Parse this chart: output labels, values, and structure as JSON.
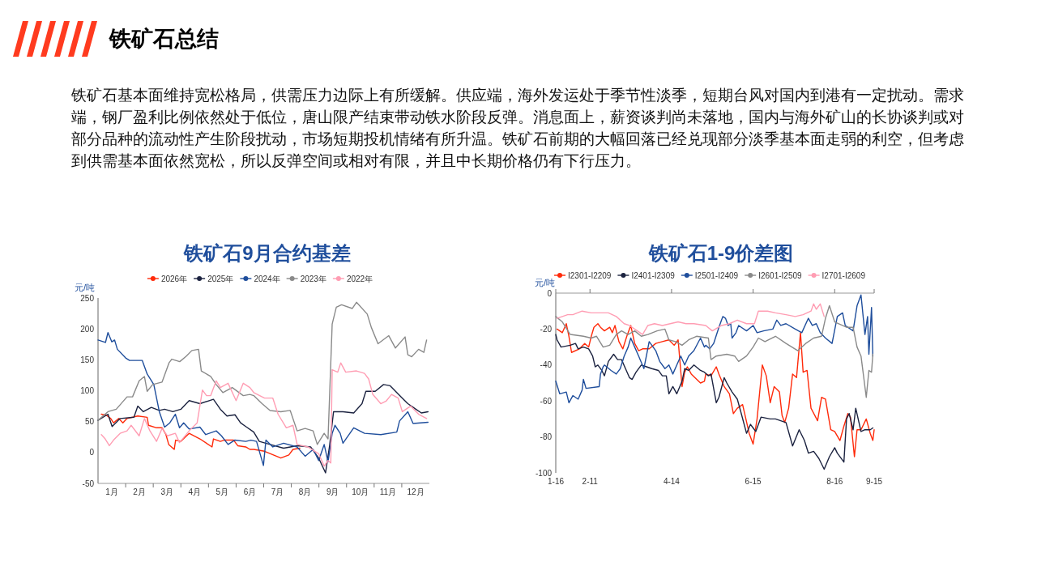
{
  "chart_data": [
    {
      "type": "other",
      "title": "铁矿石总结",
      "annotations": [
        "铁矿石基本面维持宽松格局，供需压力边际上有所缓解。供应端，海外发运处于季节性淡季，短期台风对国内到港有一定扰动。需求端，钢厂盈利比例依然处于低位，唐山限产结束带动铁水阶段反弹。消息面上，薪资谈判尚未落地，国内与海外矿山的长协谈判或对部分品种的流动性产生阶段扰动，市场短期投机情绪有所升温。铁矿石前期的大幅回落已经兑现部分淡季基本面走弱的利空，但考虑到供需基本面依然宽松，所以反弹空间或相对有限，并且中长期价格仍有下行压力。"
      ]
    },
    {
      "type": "line",
      "title": "铁矿石9月合约基差",
      "ylabel": "元/吨",
      "legend": "top",
      "xlim": [
        0,
        12
      ],
      "ylim": [
        -50,
        250
      ],
      "yticks": [
        -50,
        0,
        50,
        100,
        150,
        200,
        250
      ],
      "xticks": [
        {
          "value": 0.5,
          "label": "1月"
        },
        {
          "value": 1,
          "label": null
        },
        {
          "value": 1.5,
          "label": "2月"
        },
        {
          "value": 2,
          "label": null
        },
        {
          "value": 2.5,
          "label": "3月"
        },
        {
          "value": 3,
          "label": null
        },
        {
          "value": 3.5,
          "label": "4月"
        },
        {
          "value": 4,
          "label": null
        },
        {
          "value": 4.5,
          "label": "5月"
        },
        {
          "value": 5,
          "label": null
        },
        {
          "value": 5.5,
          "label": "6月"
        },
        {
          "value": 6,
          "label": null
        },
        {
          "value": 6.5,
          "label": "7月"
        },
        {
          "value": 7,
          "label": null
        },
        {
          "value": 7.5,
          "label": "8月"
        },
        {
          "value": 8,
          "label": null
        },
        {
          "value": 8.5,
          "label": "9月"
        },
        {
          "value": 9,
          "label": null
        },
        {
          "value": 9.5,
          "label": "10月"
        },
        {
          "value": 10,
          "label": null
        },
        {
          "value": 10.5,
          "label": "11月"
        },
        {
          "value": 11,
          "label": null
        },
        {
          "value": 11.5,
          "label": "12月"
        }
      ],
      "series": [
        {
          "name": "2026年",
          "color": "#ff2a0a",
          "x": [
            0.12,
            0.31,
            0.46,
            0.56,
            0.75,
            0.9,
            1.05,
            1.44,
            1.78,
            1.83,
            2.12,
            2.32,
            2.46,
            2.56,
            2.76,
            2.81,
            3.0,
            3.3,
            3.69,
            4.13,
            4.18,
            4.43,
            4.57,
            4.91,
            5.06,
            5.35,
            5.5,
            5.64,
            6.03,
            6.62,
            6.91,
            7.06,
            7.31
          ],
          "values": [
            62,
            60,
            55,
            48,
            55,
            48,
            55,
            59,
            57,
            44,
            40,
            40,
            29,
            13,
            5,
            20,
            18,
            31,
            22,
            9,
            22,
            18,
            20,
            20,
            11,
            9,
            5,
            5,
            2,
            -9,
            -4,
            5,
            7
          ]
        },
        {
          "name": "2025年",
          "color": "#1c2340",
          "x": [
            0,
            0.36,
            0.51,
            0.8,
            1.3,
            1.44,
            1.64,
            1.93,
            2.22,
            2.41,
            2.71,
            3.0,
            3.3,
            3.69,
            4.18,
            4.43,
            4.67,
            4.96,
            5.16,
            5.35,
            5.64,
            5.84,
            6.23,
            6.72,
            7.21,
            7.7,
            7.99,
            8.24,
            8.38,
            8.53,
            8.87,
            9.26,
            9.56,
            9.7,
            10.04,
            10.34,
            10.58,
            11.02,
            11.22,
            11.51,
            11.71,
            11.95
          ],
          "values": [
            52,
            62,
            42,
            55,
            57,
            75,
            66,
            73,
            68,
            70,
            66,
            70,
            84,
            79,
            86,
            70,
            59,
            61,
            48,
            42,
            33,
            18,
            13,
            7,
            11,
            9,
            -9,
            -33,
            9,
            66,
            66,
            64,
            79,
            99,
            99,
            110,
            108,
            88,
            79,
            70,
            64,
            66
          ]
        },
        {
          "name": "2024年",
          "color": "#1f4e9c",
          "x": [
            0,
            0.27,
            0.36,
            0.5,
            0.6,
            0.7,
            1.0,
            1.14,
            1.6,
            1.78,
            2.02,
            2.22,
            2.41,
            2.6,
            2.8,
            2.95,
            3.1,
            3.3,
            3.69,
            3.9,
            4.28,
            4.47,
            4.71,
            4.95,
            5.35,
            5.54,
            5.74,
            5.99,
            6.08,
            6.33,
            6.72,
            7.21,
            7.5,
            7.79,
            7.99,
            8.19,
            8.33,
            8.48,
            8.58,
            8.77,
            8.87,
            9.26,
            9.65,
            10.24,
            10.82,
            10.92,
            11.22,
            11.41,
            11.95
          ],
          "values": [
            182,
            178,
            194,
            179,
            182,
            167,
            153,
            149,
            149,
            127,
            110,
            66,
            41,
            48,
            62,
            40,
            48,
            38,
            41,
            29,
            35,
            27,
            13,
            20,
            18,
            20,
            18,
            -21,
            20,
            9,
            15,
            9,
            -6,
            5,
            -13,
            13,
            -15,
            31,
            44,
            31,
            15,
            40,
            31,
            29,
            33,
            51,
            66,
            47,
            49
          ]
        },
        {
          "name": "2023年",
          "color": "#8a8a8a",
          "x": [
            0,
            0.36,
            0.66,
            1.05,
            1.25,
            1.49,
            1.68,
            1.78,
            1.98,
            2.32,
            2.57,
            2.67,
            2.96,
            3.2,
            3.4,
            3.64,
            3.74,
            4.08,
            4.28,
            4.52,
            4.86,
            5.26,
            5.5,
            5.64,
            5.94,
            6.23,
            6.62,
            6.96,
            7.21,
            7.5,
            7.79,
            7.94,
            8.19,
            8.33,
            8.48,
            8.63,
            8.82,
            9.21,
            9.36,
            9.75,
            9.9,
            10.14,
            10.53,
            10.77,
            11.12,
            11.22,
            11.36,
            11.61,
            11.8,
            11.9
          ],
          "values": [
            52,
            66,
            70,
            90,
            90,
            116,
            123,
            99,
            110,
            114,
            145,
            151,
            147,
            156,
            165,
            167,
            132,
            123,
            110,
            97,
            105,
            92,
            94,
            92,
            79,
            68,
            66,
            68,
            35,
            39,
            35,
            13,
            31,
            22,
            208,
            235,
            239,
            233,
            243,
            224,
            202,
            176,
            189,
            169,
            187,
            158,
            155,
            167,
            162,
            182
          ]
        },
        {
          "name": "2022年",
          "color": "#ff9db3",
          "x": [
            0.12,
            0.26,
            0.41,
            0.56,
            0.8,
            1.05,
            1.2,
            1.49,
            1.68,
            1.88,
            2.12,
            2.32,
            2.51,
            2.8,
            2.95,
            3.3,
            3.59,
            3.78,
            3.93,
            4.08,
            4.28,
            4.43,
            4.71,
            5.0,
            5.26,
            5.5,
            5.64,
            6.03,
            6.33,
            6.52,
            6.82,
            7.06,
            7.21,
            7.6,
            7.99,
            8.19,
            8.33,
            8.43,
            8.48,
            8.68,
            8.79,
            8.97,
            9.36,
            9.65,
            9.8,
            9.95,
            10.24,
            10.43,
            10.63,
            10.87,
            11.02,
            11.32,
            11.61,
            11.9
          ],
          "values": [
            29,
            22,
            11,
            20,
            31,
            35,
            44,
            27,
            55,
            35,
            18,
            39,
            27,
            31,
            16,
            35,
            48,
            101,
            92,
            92,
            116,
            105,
            112,
            84,
            112,
            105,
            97,
            88,
            88,
            62,
            40,
            44,
            13,
            9,
            -2,
            -22,
            -13,
            -17,
            134,
            130,
            145,
            130,
            132,
            128,
            119,
            94,
            79,
            83,
            94,
            88,
            66,
            75,
            62,
            55
          ]
        }
      ]
    },
    {
      "type": "line",
      "title": "铁矿石1-9价差图",
      "ylabel": "元/吨",
      "legend": "top",
      "xlim": [
        "--01-16",
        "--09-15"
      ],
      "ylim": [
        -100,
        0
      ],
      "yticks": [
        0,
        -20,
        -40,
        -60,
        -80,
        -100
      ],
      "xticks": [
        {
          "value": "--01-16",
          "label": "1-16"
        },
        {
          "value": "--02-11",
          "label": "2-11"
        },
        {
          "value": "--04-14",
          "label": "4-14"
        },
        {
          "value": "--06-15",
          "label": "6-15"
        },
        {
          "value": "--08-16",
          "label": "8-16"
        },
        {
          "value": "--09-15",
          "label": "9-15"
        }
      ],
      "series": [
        {
          "name": "I2301-I2209",
          "color": "#ff2a0a",
          "x": [
            "--01-17",
            "--01-21",
            "--01-24",
            "--01-26",
            "--01-28",
            "--02-03",
            "--02-07",
            "--02-10",
            "--02-12",
            "--02-14",
            "--02-17",
            "--02-19",
            "--02-22",
            "--02-26",
            "--02-28",
            "--03-02",
            "--03-05",
            "--03-08",
            "--03-11",
            "--03-14",
            "--03-17",
            "--03-20",
            "--03-23",
            "--03-28",
            "--04-02",
            "--04-07",
            "--04-12",
            "--04-16",
            "--04-19",
            "--04-22",
            "--04-24",
            "--04-26",
            "--04-29",
            "--05-06",
            "--05-09",
            "--05-10",
            "--05-14",
            "--05-18",
            "--05-20",
            "--05-24",
            "--05-28",
            "--05-31",
            "--06-03",
            "--06-07",
            "--06-12",
            "--06-15",
            "--06-18",
            "--06-22",
            "--06-25",
            "--06-28",
            "--07-01",
            "--07-05",
            "--07-07",
            "--07-09",
            "--07-12",
            "--07-15",
            "--07-18",
            "--07-21",
            "--07-23",
            "--07-26",
            "--07-29",
            "--08-03",
            "--08-06",
            "--08-09",
            "--08-13",
            "--08-16",
            "--08-20",
            "--08-23",
            "--08-26",
            "--08-28",
            "--08-31",
            "--09-02",
            "--09-05",
            "--09-09",
            "--09-12",
            "--09-14",
            "--09-15"
          ],
          "values": [
            -20,
            -22,
            -17,
            -24,
            -33,
            -31,
            -28,
            -30,
            -24,
            -19,
            -17,
            -19,
            -21,
            -19,
            -22,
            -18,
            -27,
            -31,
            -24,
            -18,
            -28,
            -32,
            -31,
            -31,
            -28,
            -27,
            -26,
            -29,
            -26,
            -52,
            -44,
            -41,
            -45,
            -50,
            -49,
            -45,
            -46,
            -41,
            -45,
            -52,
            -56,
            -67,
            -64,
            -62,
            -78,
            -84,
            -70,
            -40,
            -46,
            -61,
            -52,
            -55,
            -68,
            -72,
            -64,
            -45,
            -47,
            -22,
            -44,
            -43,
            -64,
            -71,
            -58,
            -59,
            -76,
            -77,
            -82,
            -74,
            -67,
            -69,
            -91,
            -76,
            -76,
            -70,
            -78,
            -82,
            -76
          ]
        },
        {
          "name": "I2401-I2309",
          "color": "#1c2340",
          "x": [
            "--01-16",
            "--01-17",
            "--01-20",
            "--01-27",
            "--01-31",
            "--02-02",
            "--02-06",
            "--02-10",
            "--02-13",
            "--02-15",
            "--02-17",
            "--02-20",
            "--02-22",
            "--02-25",
            "--03-01",
            "--03-04",
            "--03-07",
            "--03-10",
            "--03-13",
            "--03-15",
            "--03-18",
            "--03-22",
            "--03-26",
            "--03-30",
            "--04-04",
            "--04-07",
            "--04-10",
            "--04-12",
            "--04-15",
            "--04-18",
            "--04-22",
            "--04-24",
            "--04-27",
            "--05-01",
            "--05-06",
            "--05-09",
            "--05-12",
            "--05-14",
            "--05-18",
            "--05-20",
            "--05-24",
            "--05-26",
            "--05-30",
            "--06-03",
            "--06-06",
            "--06-10",
            "--06-13",
            "--06-15",
            "--06-17",
            "--06-21",
            "--06-28",
            "--07-02",
            "--07-10",
            "--07-15",
            "--07-20",
            "--07-24",
            "--07-27",
            "--07-31",
            "--08-04",
            "--08-08",
            "--08-12",
            "--08-16",
            "--08-18",
            "--08-23",
            "--08-25",
            "--08-27",
            "--08-30",
            "--09-01",
            "--09-05",
            "--09-08",
            "--09-12",
            "--09-14"
          ],
          "values": [
            -23,
            -26,
            -30,
            -29,
            -28,
            -31,
            -30,
            -31,
            -35,
            -41,
            -40,
            -43,
            -46,
            -38,
            -34,
            -37,
            -37,
            -42,
            -47,
            -48,
            -44,
            -40,
            -41,
            -42,
            -43,
            -46,
            -46,
            -56,
            -52,
            -56,
            -49,
            -42,
            -43,
            -40,
            -43,
            -44,
            -46,
            -45,
            -61,
            -58,
            -47,
            -50,
            -55,
            -59,
            -67,
            -78,
            -73,
            -75,
            -77,
            -69,
            -70,
            -70,
            -72,
            -85,
            -76,
            -82,
            -89,
            -88,
            -92,
            -98,
            -91,
            -86,
            -89,
            -94,
            -70,
            -67,
            -76,
            -64,
            -77,
            -76,
            -76,
            -75
          ]
        },
        {
          "name": "I2501-I2409",
          "color": "#1f4e9c",
          "x": [
            "--01-16",
            "--01-19",
            "--01-24",
            "--01-26",
            "--01-29",
            "--02-02",
            "--02-05",
            "--02-06",
            "--02-08",
            "--02-18",
            "--02-19",
            "--02-21",
            "--02-22",
            "--02-27",
            "--03-03",
            "--03-06",
            "--03-09",
            "--03-12",
            "--03-14",
            "--03-17",
            "--03-20",
            "--03-24",
            "--03-28",
            "--04-02",
            "--04-05",
            "--04-09",
            "--04-12",
            "--04-15",
            "--04-18",
            "--04-21",
            "--04-24",
            "--04-27",
            "--05-01",
            "--05-06",
            "--05-09",
            "--05-10",
            "--05-13",
            "--05-16",
            "--05-20",
            "--05-23",
            "--05-25",
            "--05-27",
            "--05-29",
            "--05-30",
            "--06-02",
            "--06-04",
            "--06-10",
            "--06-15",
            "--06-18",
            "--06-23",
            "--06-30",
            "--07-03",
            "--07-06",
            "--07-10",
            "--07-17",
            "--07-22",
            "--07-27",
            "--07-30",
            "--08-02",
            "--08-05",
            "--08-09",
            "--08-14",
            "--08-18",
            "--08-22",
            "--08-24",
            "--08-30",
            "--09-02",
            "--09-05",
            "--09-08",
            "--09-10",
            "--09-11",
            "--09-13",
            "--09-14"
          ],
          "values": [
            -49,
            -56,
            -55,
            -61,
            -57,
            -59,
            -54,
            -48,
            -53,
            -52,
            -45,
            -41,
            -40,
            -43,
            -45,
            -42,
            -35,
            -30,
            -25,
            -30,
            -35,
            -42,
            -27,
            -32,
            -38,
            -42,
            -40,
            -45,
            -40,
            -35,
            -40,
            -35,
            -32,
            -25,
            -30,
            -29,
            -31,
            -28,
            -19,
            -13,
            -14,
            -18,
            -17,
            -25,
            -22,
            -18,
            -21,
            -18,
            -22,
            -21,
            -20,
            -15,
            -18,
            -17,
            -20,
            -22,
            -14,
            -18,
            -17,
            -22,
            -25,
            -28,
            -13,
            -11,
            -18,
            -21,
            -7,
            -1,
            -23,
            -13,
            -34,
            -8,
            -35
          ]
        },
        {
          "name": "I2601-I2509",
          "color": "#8a8a8a",
          "x": [
            "--01-16",
            "--01-21",
            "--01-27",
            "--02-06",
            "--02-12",
            "--02-16",
            "--02-21",
            "--02-26",
            "--03-03",
            "--03-07",
            "--03-12",
            "--03-17",
            "--03-22",
            "--03-27",
            "--04-03",
            "--04-09",
            "--04-12",
            "--04-17",
            "--04-22",
            "--04-27",
            "--05-03",
            "--05-12",
            "--05-14",
            "--05-18",
            "--05-26",
            "--06-01",
            "--06-04",
            "--06-10",
            "--06-15",
            "--06-19",
            "--06-24",
            "--07-02",
            "--07-10",
            "--07-19",
            "--07-25",
            "--07-31",
            "--08-06",
            "--08-09",
            "--08-12",
            "--08-16",
            "--08-25",
            "--08-30",
            "--09-02",
            "--09-05",
            "--09-09",
            "--09-11",
            "--09-13",
            "--09-14"
          ],
          "values": [
            -13,
            -16,
            -23,
            -24,
            -25,
            -24,
            -30,
            -29,
            -23,
            -21,
            -23,
            -21,
            -24,
            -23,
            -21,
            -20,
            -26,
            -27,
            -29,
            -26,
            -24,
            -25,
            -37,
            -35,
            -34,
            -35,
            -38,
            -35,
            -30,
            -25,
            -27,
            -24,
            -28,
            -32,
            -28,
            -25,
            -24,
            -14,
            -7,
            -16,
            -19,
            -19,
            -30,
            -35,
            -58,
            -43,
            -44,
            -34
          ]
        },
        {
          "name": "I2701-I2609",
          "color": "#ff9db3",
          "x": [
            "--01-17",
            "--01-25",
            "--01-29",
            "--02-05",
            "--02-12",
            "--02-18",
            "--02-25",
            "--03-03",
            "--03-06",
            "--03-09",
            "--03-13",
            "--03-19",
            "--03-23",
            "--03-27",
            "--04-01",
            "--04-07",
            "--04-13",
            "--04-19",
            "--04-25",
            "--05-01",
            "--05-10",
            "--05-15",
            "--05-22",
            "--05-28",
            "--06-03",
            "--06-10",
            "--06-16",
            "--06-19",
            "--06-26",
            "--07-02",
            "--07-10",
            "--07-17",
            "--07-23",
            "--07-29",
            "--07-31",
            "--08-02",
            "--08-05",
            "--08-08"
          ],
          "values": [
            -14,
            -12,
            -12,
            -10,
            -11,
            -11,
            -11,
            -13,
            -15,
            -17,
            -18,
            -21,
            -23,
            -18,
            -17,
            -18,
            -17,
            -16,
            -17,
            -17,
            -18,
            -21,
            -18,
            -17,
            -15,
            -17,
            -17,
            -10,
            -10,
            -11,
            -12,
            -13,
            -12,
            -10,
            -6,
            -9,
            -6,
            -13
          ]
        }
      ]
    }
  ]
}
